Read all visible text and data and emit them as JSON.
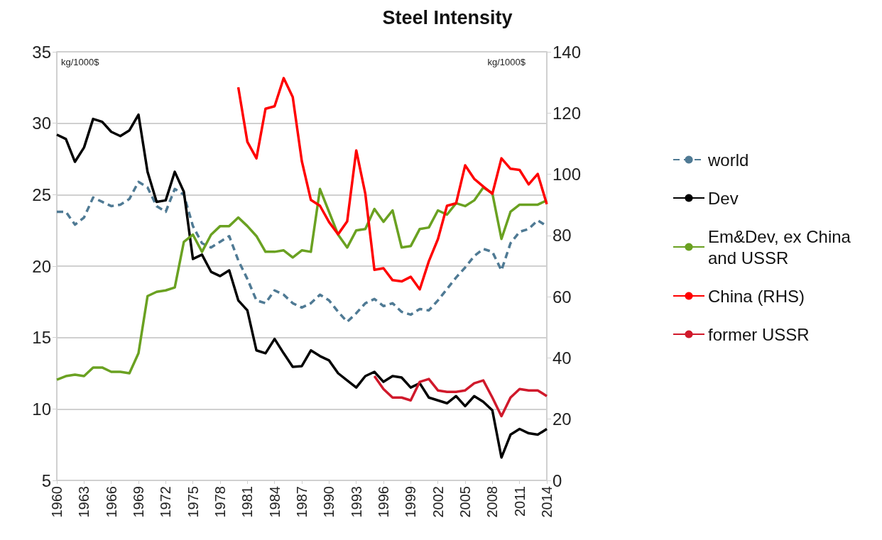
{
  "chart_data": {
    "type": "line",
    "title": "Steel Intensity",
    "annotations": [
      "kg/1000$",
      "kg/1000$"
    ],
    "x": [
      1960,
      1961,
      1962,
      1963,
      1964,
      1965,
      1966,
      1967,
      1968,
      1969,
      1970,
      1971,
      1972,
      1973,
      1974,
      1975,
      1976,
      1977,
      1978,
      1979,
      1980,
      1981,
      1982,
      1983,
      1984,
      1985,
      1986,
      1987,
      1988,
      1989,
      1990,
      1991,
      1992,
      1993,
      1994,
      1995,
      1996,
      1997,
      1998,
      1999,
      2000,
      2001,
      2002,
      2003,
      2004,
      2005,
      2006,
      2007,
      2008,
      2009,
      2010,
      2011,
      2012,
      2013,
      2014
    ],
    "xlim": [
      1960,
      2014
    ],
    "xticks": [
      1960,
      1963,
      1966,
      1969,
      1972,
      1975,
      1978,
      1981,
      1984,
      1987,
      1990,
      1993,
      1996,
      1999,
      2002,
      2005,
      2008,
      2011,
      2014
    ],
    "ylim": [
      5,
      35
    ],
    "yticks": [
      5,
      10,
      15,
      20,
      25,
      30,
      35
    ],
    "y2lim": [
      0,
      140
    ],
    "y2ticks": [
      0,
      20,
      40,
      60,
      80,
      100,
      120,
      140
    ],
    "grid": "y",
    "legend": "right",
    "marker": "none",
    "series": [
      {
        "name": "world",
        "color": "#4f7a94",
        "line_style": "dashed",
        "values": [
          23.8,
          23.8,
          22.9,
          23.4,
          24.8,
          24.5,
          24.2,
          24.3,
          24.7,
          25.9,
          25.5,
          24.2,
          23.8,
          25.4,
          25.0,
          22.8,
          21.6,
          21.3,
          21.7,
          22.1,
          20.4,
          19.1,
          17.6,
          17.4,
          18.3,
          18.0,
          17.4,
          17.1,
          17.4,
          18.0,
          17.6,
          16.8,
          16.1,
          16.7,
          17.4,
          17.7,
          17.2,
          17.4,
          16.8,
          16.6,
          17.0,
          16.9,
          17.6,
          18.4,
          19.2,
          19.9,
          20.7,
          21.2,
          21.0,
          19.7,
          21.6,
          22.4,
          22.6,
          23.2,
          22.8
        ]
      },
      {
        "name": "Dev",
        "color": "#000000",
        "line_style": "solid",
        "values": [
          29.2,
          28.9,
          27.3,
          28.3,
          30.3,
          30.1,
          29.4,
          29.1,
          29.5,
          30.6,
          26.6,
          24.5,
          24.6,
          26.6,
          25.2,
          20.5,
          20.8,
          19.6,
          19.3,
          19.7,
          17.6,
          16.9,
          14.1,
          13.9,
          14.9,
          13.9,
          12.95,
          13.0,
          14.1,
          13.7,
          13.4,
          12.5,
          12.0,
          11.5,
          12.3,
          12.6,
          11.9,
          12.3,
          12.2,
          11.5,
          11.8,
          10.8,
          10.6,
          10.4,
          10.9,
          10.2,
          10.9,
          10.5,
          9.9,
          6.6,
          8.2,
          8.6,
          8.3,
          8.2,
          8.6
        ]
      },
      {
        "name": "Em&Dev, ex China and USSR",
        "color": "#6aa121",
        "line_style": "solid",
        "values": [
          12.05,
          12.3,
          12.4,
          12.3,
          12.9,
          12.9,
          12.6,
          12.6,
          12.5,
          13.9,
          17.9,
          18.2,
          18.3,
          18.5,
          21.7,
          22.2,
          21.0,
          22.2,
          22.8,
          22.8,
          23.4,
          22.8,
          22.1,
          21.0,
          21.0,
          21.1,
          20.6,
          21.1,
          21.0,
          25.4,
          23.8,
          22.2,
          21.3,
          22.5,
          22.6,
          24.0,
          23.1,
          23.9,
          21.3,
          21.4,
          22.6,
          22.7,
          23.9,
          23.6,
          24.4,
          24.2,
          24.6,
          25.5,
          25.1,
          21.9,
          23.8,
          24.3,
          24.3,
          24.3,
          24.6
        ]
      },
      {
        "name": "China (RHS)",
        "color": "#ff0000",
        "line_style": "solid",
        "axis": "y2",
        "values": [
          null,
          null,
          null,
          null,
          null,
          null,
          null,
          null,
          null,
          null,
          null,
          null,
          null,
          null,
          null,
          null,
          null,
          null,
          null,
          null,
          128.4,
          110.6,
          105.2,
          121.4,
          122.2,
          131.4,
          125.2,
          104.3,
          91.6,
          89.7,
          84.4,
          80.4,
          84.6,
          107.8,
          93.6,
          68.8,
          69.3,
          65.4,
          65.0,
          66.5,
          62.4,
          71.6,
          78.8,
          89.7,
          90.5,
          102.9,
          98.5,
          96.0,
          93.6,
          105.2,
          101.8,
          101.4,
          96.7,
          100.1,
          90.2
        ]
      },
      {
        "name": "former USSR",
        "color": "#d0192b",
        "line_style": "solid",
        "values": [
          null,
          null,
          null,
          null,
          null,
          null,
          null,
          null,
          null,
          null,
          null,
          null,
          null,
          null,
          null,
          null,
          null,
          null,
          null,
          null,
          null,
          null,
          null,
          null,
          null,
          null,
          null,
          null,
          null,
          null,
          null,
          null,
          null,
          null,
          null,
          12.3,
          11.4,
          10.8,
          10.8,
          10.6,
          11.9,
          12.1,
          11.3,
          11.2,
          11.2,
          11.3,
          11.8,
          12.0,
          10.8,
          9.5,
          10.8,
          11.4,
          11.3,
          11.3,
          10.9
        ]
      }
    ]
  }
}
